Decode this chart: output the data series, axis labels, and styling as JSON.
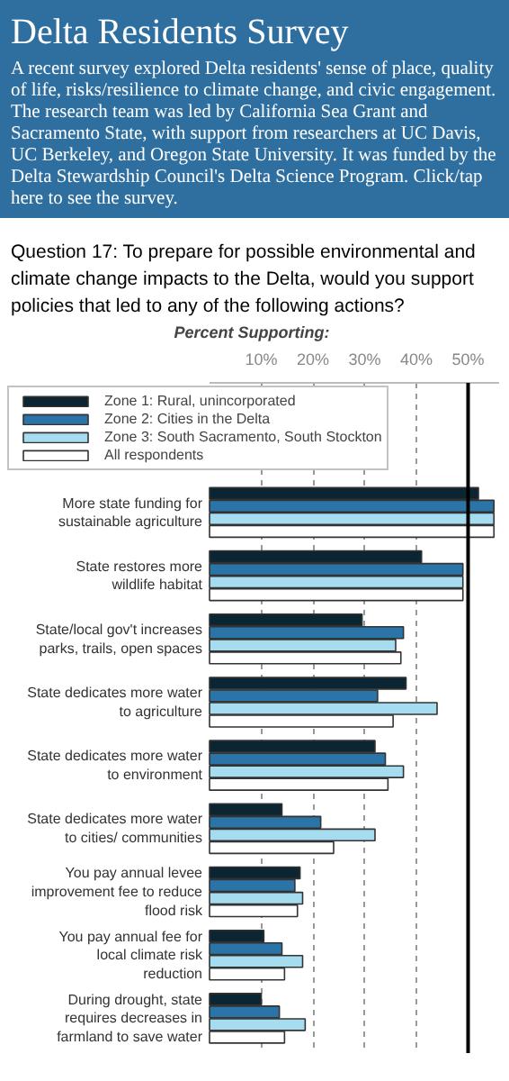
{
  "chart_data": {
    "type": "bar",
    "orientation": "horizontal",
    "title": "Delta Residents Survey",
    "subtitle": "A recent survey explored Delta residents' sense of place, quality of life, risks/resilience to climate change, and civic engagement. The research team was led by California Sea Grant and Sacramento State, with support from researchers at UC Davis, UC Berkeley, and Oregon State University. It was funded by the Delta Stewardship Council's Delta Science Program. Click/tap here to see the survey.",
    "annotations": [
      "Question 17: To prepare for possible environmental and climate change impacts to the Delta, would you support policies that led to any of the following actions?"
    ],
    "xlabel": "Percent Supporting:",
    "categories": [
      "More state funding for sustainable agriculture",
      "State restores more wildlife habitat",
      "State/local gov't increases parks, trails, open spaces",
      "State dedicates more water to agriculture",
      "State dedicates more water to environment",
      "State dedicates more water to cities/ communities",
      "You pay annual levee improvement fee to reduce flood risk",
      "You pay annual fee for local climate risk reduction",
      "During drought, state requires decreases in farmland to save water"
    ],
    "series": [
      {
        "name": "Zone 1: Rural, unincorporated",
        "color": "#0b2532",
        "values": [
          52,
          41,
          29.5,
          38,
          32,
          14,
          17.5,
          10.5,
          10
        ]
      },
      {
        "name": "Zone 2: Cities in the Delta",
        "color": "#2a74a8",
        "values": [
          55,
          49,
          37.5,
          32.5,
          34,
          21.5,
          16.5,
          14,
          13.5
        ]
      },
      {
        "name": "Zone 3: South Sacramento, South Stockton",
        "color": "#a6dcf0",
        "values": [
          55,
          49,
          36,
          44,
          37.5,
          32,
          18,
          18,
          18.5
        ]
      },
      {
        "name": "All respondents",
        "color": "#ffffff",
        "values": [
          55,
          49,
          37,
          35.5,
          34.5,
          24,
          17,
          14.5,
          14.5
        ]
      }
    ],
    "xlim": [
      0,
      56
    ],
    "xticks": [
      {
        "value": 10,
        "label": "10%"
      },
      {
        "value": 20,
        "label": "20%"
      },
      {
        "value": 30,
        "label": "30%"
      },
      {
        "value": 40,
        "label": "40%"
      },
      {
        "value": 50,
        "label": "50%"
      }
    ],
    "ref_lines": [
      {
        "axis": "x",
        "value": 50,
        "color": "#000000"
      }
    ],
    "grid": "x",
    "legend": "top"
  }
}
